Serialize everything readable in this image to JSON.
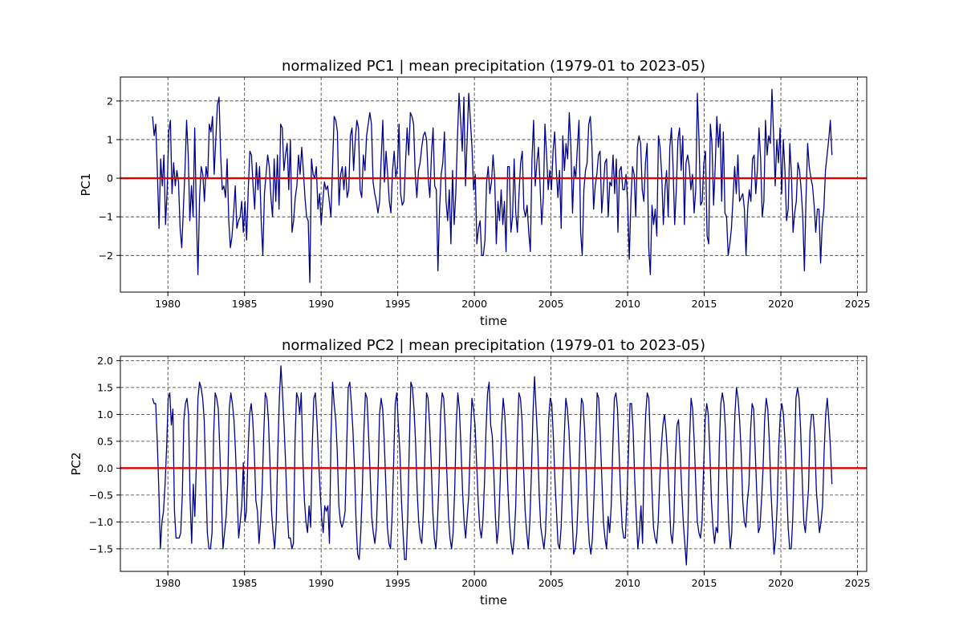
{
  "chart_data": [
    {
      "type": "line",
      "title": "normalized PC1 | mean precipitation (1979-01 to 2023-05)",
      "xlabel": "time",
      "ylabel": "PC1",
      "xlim": [
        1976.9,
        2025.6
      ],
      "ylim": [
        -2.95,
        2.62
      ],
      "xticks": [
        "1980",
        "1985",
        "1990",
        "1995",
        "2000",
        "2005",
        "2010",
        "2015",
        "2020",
        "2025"
      ],
      "yticks": [
        "−2",
        "−1",
        "0",
        "1",
        "2"
      ],
      "ytick_values": [
        -2,
        -1,
        0,
        1,
        2
      ],
      "grid": true,
      "reference_line": {
        "y": 0,
        "color": "#e00000"
      },
      "series": [
        {
          "color": "#00008b",
          "x_start": "1979-01",
          "x_end": "2023-05",
          "step": "monthly",
          "values": [
            1.6,
            1.1,
            1.4,
            0.1,
            -1.3,
            0.5,
            -0.2,
            0.6,
            -1.2,
            -0.3,
            1.2,
            1.5,
            -0.4,
            0.4,
            -0.2,
            0.2,
            -0.1,
            -1.3,
            -1.8,
            -0.8,
            0.2,
            1.5,
            0.6,
            -1.1,
            -0.2,
            -1.0,
            1.3,
            -0.9,
            -2.5,
            -0.5,
            0.3,
            0.1,
            -0.6,
            0.3,
            0.0,
            1.4,
            1.2,
            1.6,
            0.1,
            1.0,
            1.9,
            2.1,
            0.6,
            -0.3,
            -0.2,
            -0.5,
            0.5,
            -1.1,
            -1.8,
            -1.5,
            -0.9,
            -0.2,
            -1.3,
            -1.1,
            -1.0,
            -0.6,
            -1.4,
            -0.6,
            -1.6,
            -0.3,
            0.7,
            0.6,
            -0.2,
            -0.8,
            0.4,
            -0.3,
            0.3,
            -1.1,
            -2.0,
            -0.4,
            0.1,
            0.6,
            0.3,
            -0.5,
            -1.0,
            0.5,
            -0.6,
            0.6,
            -0.8,
            1.4,
            1.3,
            0.2,
            0.6,
            0.9,
            -0.3,
            1.0,
            -1.4,
            -1.1,
            -0.5,
            -0.2,
            0.6,
            0.1,
            0.8,
            0.2,
            -0.5,
            -1.0,
            -1.1,
            -2.7,
            0.5,
            0.1,
            0.0,
            0.3,
            -0.8,
            -0.4,
            -1.2,
            -0.6,
            -0.1,
            -0.3,
            -0.2,
            -0.6,
            -1.0,
            0.3,
            1.6,
            1.5,
            1.2,
            -0.7,
            0.1,
            0.3,
            -0.3,
            0.3,
            -0.5,
            -0.3,
            1.1,
            1.3,
            0.2,
            1.0,
            1.5,
            1.3,
            -0.3,
            -0.5,
            0.6,
            0.2,
            1.1,
            1.4,
            1.7,
            1.4,
            -0.1,
            -0.4,
            -0.6,
            -0.9,
            -0.6,
            0.5,
            1.5,
            -0.1,
            0.7,
            0.1,
            -0.6,
            -0.9,
            0.2,
            0.7,
            0.0,
            0.3,
            1.4,
            -0.4,
            -0.7,
            -0.6,
            0.4,
            1.3,
            0.6,
            1.7,
            1.6,
            1.4,
            0.1,
            -0.5,
            0.2,
            0.4,
            0.8,
            1.1,
            1.2,
            1.0,
            0.0,
            -0.5,
            0.6,
            1.3,
            -0.2,
            -0.3,
            -2.4,
            -0.8,
            0.1,
            0.4,
            1.2,
            -0.6,
            -1.1,
            -0.3,
            -1.7,
            0.2,
            -1.2,
            -0.4,
            1.0,
            2.2,
            1.5,
            0.7,
            2.1,
            -0.2,
            1.0,
            2.2,
            1.5,
            0.8,
            -0.3,
            0.1,
            -1.7,
            -1.3,
            -1.1,
            -2.0,
            -2.0,
            -1.6,
            -0.1,
            0.3,
            -0.4,
            -0.1,
            0.6,
            0.0,
            -1.7,
            -0.6,
            -1.1,
            -0.3,
            -1.2,
            -0.6,
            -1.9,
            0.3,
            0.3,
            -1.4,
            -1.0,
            0.5,
            -0.9,
            -1.4,
            -0.4,
            0.4,
            0.7,
            -0.8,
            -1.0,
            -0.7,
            -1.4,
            -1.9,
            0.5,
            1.5,
            -0.2,
            0.4,
            0.8,
            -0.2,
            -1.2,
            -0.5,
            1.4,
            0.6,
            -0.3,
            0.2,
            -0.3,
            0.7,
            1.2,
            0.2,
            -0.5,
            0.2,
            -1.3,
            1.1,
            0.2,
            0.9,
            0.5,
            1.7,
            0.8,
            -0.9,
            0.3,
            0.0,
            0.8,
            1.5,
            -1.4,
            -2.0,
            -0.3,
            0.2,
            0.4,
            1.4,
            1.6,
            0.8,
            -0.8,
            -0.2,
            0.1,
            0.6,
            0.7,
            -0.9,
            -0.3,
            0.4,
            0.5,
            -1.0,
            -0.1,
            -0.2,
            0.6,
            -0.4,
            0.5,
            -1.4,
            0.2,
            0.3,
            -0.3,
            -0.3,
            0.1,
            -0.6,
            -2.1,
            -0.6,
            0.3,
            0.1,
            -1.0,
            0.8,
            1.1,
            0.9,
            -0.3,
            -0.6,
            0.4,
            0.9,
            -1.8,
            -2.5,
            -0.7,
            -1.2,
            -0.8,
            -1.5,
            1.1,
            0.8,
            0.1,
            -1.2,
            -0.3,
            0.2,
            -1.0,
            0.8,
            1.3,
            0.3,
            -1.2,
            -0.3,
            1.0,
            1.3,
            0.2,
            1.1,
            -1.2,
            0.4,
            0.6,
            0.3,
            -0.3,
            0.1,
            -0.9,
            -0.3,
            2.2,
            1.0,
            -0.7,
            -0.6,
            0.4,
            0.7,
            -1.5,
            -1.7,
            1.4,
            0.9,
            -0.7,
            0.3,
            1.6,
            0.8,
            1.4,
            -0.6,
            1.2,
            -0.9,
            -1.0,
            -2.0,
            -1.7,
            -1.3,
            -0.5,
            0.3,
            -0.4,
            0.6,
            -0.6,
            -0.5,
            -0.4,
            -0.8,
            -2.0,
            -0.8,
            -0.3,
            -0.6,
            0.5,
            0.6,
            -0.4,
            0.2,
            1.3,
            0.5,
            -1.0,
            -0.6,
            1.5,
            0.6,
            1.1,
            0.9,
            2.3,
            1.1,
            -0.2,
            1.0,
            0.4,
            1.3,
            -0.4,
            1.0,
            0.2,
            -1.1,
            -0.8,
            0.9,
            0.1,
            -1.4,
            -0.9,
            -0.6,
            0.4,
            0.2,
            -0.3,
            -1.0,
            -2.4,
            -0.5,
            0.9,
            0.3,
            0.0,
            -0.2,
            -0.7,
            -1.4,
            -0.8,
            -0.8,
            -2.2,
            -1.2,
            -0.8,
            0.2,
            0.6,
            1.0,
            1.5,
            0.6
          ]
        }
      ]
    },
    {
      "type": "line",
      "title": "normalized PC2 | mean precipitation (1979-01 to 2023-05)",
      "xlabel": "time",
      "ylabel": "PC2",
      "xlim": [
        1976.9,
        2025.6
      ],
      "ylim": [
        -1.92,
        2.08
      ],
      "xticks": [
        "1980",
        "1985",
        "1990",
        "1995",
        "2000",
        "2005",
        "2010",
        "2015",
        "2020",
        "2025"
      ],
      "yticks": [
        "−1.5",
        "−1.0",
        "−0.5",
        "0.0",
        "0.5",
        "1.0",
        "1.5",
        "2.0"
      ],
      "ytick_values": [
        -1.5,
        -1.0,
        -0.5,
        0.0,
        0.5,
        1.0,
        1.5,
        2.0
      ],
      "grid": true,
      "reference_line": {
        "y": 0,
        "color": "#e00000"
      },
      "series": [
        {
          "color": "#00008b",
          "x_start": "1979-01",
          "x_end": "2023-05",
          "step": "monthly",
          "values": [
            1.3,
            1.2,
            1.2,
            0.5,
            -0.4,
            -1.5,
            -1.0,
            -0.8,
            -0.3,
            0.4,
            1.3,
            1.4,
            0.8,
            1.1,
            -0.8,
            -1.3,
            -1.3,
            -1.3,
            -1.2,
            -0.5,
            0.9,
            1.2,
            1.3,
            1.0,
            -0.6,
            -1.4,
            -0.3,
            -0.9,
            0.1,
            1.3,
            1.6,
            1.5,
            1.3,
            0.9,
            -0.2,
            -1.2,
            -1.5,
            -1.5,
            -1.2,
            0.6,
            1.4,
            1.3,
            1.1,
            0.3,
            -0.6,
            -1.5,
            -1.2,
            -0.9,
            -0.3,
            1.1,
            1.4,
            1.2,
            0.9,
            0.3,
            -0.5,
            -1.3,
            -1.0,
            -0.7,
            0.1,
            -1.0,
            -0.8,
            0.3,
            1.0,
            1.2,
            0.9,
            0.3,
            -0.6,
            -0.8,
            -1.4,
            -1.0,
            -0.4,
            0.6,
            1.4,
            1.3,
            0.9,
            0.1,
            -0.8,
            -1.2,
            -1.5,
            -1.0,
            0.3,
            1.3,
            1.9,
            1.4,
            0.8,
            0.1,
            -0.8,
            -1.3,
            -1.3,
            -1.5,
            -1.4,
            0.5,
            1.4,
            1.3,
            1.0,
            1.4,
            0.2,
            -0.6,
            -1.0,
            -1.2,
            -0.7,
            -1.1,
            0.4,
            1.3,
            1.4,
            0.9,
            0.2,
            -0.4,
            -0.9,
            -1.2,
            -0.7,
            -0.8,
            -0.7,
            -1.4,
            0.6,
            1.6,
            1.2,
            0.9,
            0.3,
            -0.7,
            -1.0,
            -1.1,
            -1.0,
            -0.8,
            0.4,
            1.5,
            1.6,
            1.2,
            0.7,
            0.0,
            -1.0,
            -1.6,
            -1.7,
            -1.2,
            -0.4,
            0.7,
            1.4,
            1.3,
            0.6,
            -0.1,
            -0.9,
            -1.2,
            -1.4,
            -1.1,
            -0.2,
            1.0,
            1.3,
            1.1,
            0.5,
            -0.3,
            -1.1,
            -1.4,
            -1.5,
            -0.9,
            0.1,
            1.2,
            1.4,
            0.8,
            0.3,
            -0.6,
            -1.2,
            -1.7,
            -1.7,
            -0.9,
            0.4,
            1.6,
            1.5,
            1.1,
            0.5,
            -0.4,
            -1.0,
            -1.3,
            -1.4,
            -0.8,
            0.3,
            1.4,
            1.3,
            0.8,
            0.1,
            -0.8,
            -1.3,
            -1.5,
            -1.0,
            -0.2,
            1.0,
            1.4,
            1.3,
            0.7,
            -0.1,
            -0.9,
            -1.3,
            -1.5,
            -1.2,
            -0.4,
            0.8,
            1.4,
            1.1,
            0.4,
            -0.4,
            -1.0,
            -1.3,
            -0.9,
            -0.5,
            0.5,
            1.3,
            1.1,
            0.8,
            0.1,
            -0.6,
            -1.1,
            -1.3,
            -1.0,
            -0.3,
            0.7,
            1.4,
            1.6,
            0.8,
            0.6,
            -0.1,
            -0.9,
            -1.4,
            -1.1,
            -0.3,
            0.8,
            1.3,
            1.0,
            0.4,
            -0.4,
            -1.0,
            -1.4,
            -1.6,
            -1.3,
            -0.7,
            0.6,
            1.4,
            1.3,
            0.9,
            0.0,
            -0.8,
            -1.2,
            -1.5,
            -1.0,
            -0.1,
            1.0,
            1.7,
            1.1,
            0.5,
            -0.5,
            -1.1,
            -1.3,
            -1.5,
            -1.2,
            -0.4,
            0.9,
            1.3,
            1.2,
            0.6,
            -0.2,
            -0.8,
            -1.4,
            -1.5,
            -1.1,
            -0.3,
            0.6,
            1.3,
            1.1,
            0.7,
            0.0,
            -0.9,
            -1.6,
            -1.5,
            -1.2,
            -0.5,
            0.6,
            1.3,
            1.2,
            0.7,
            -0.1,
            -0.9,
            -1.4,
            -1.6,
            -1.3,
            -0.5,
            0.4,
            1.4,
            1.3,
            0.6,
            -0.2,
            -1.0,
            -1.3,
            -1.5,
            -0.9,
            -1.2,
            -0.7,
            0.4,
            1.3,
            1.4,
            1.1,
            0.3,
            -0.5,
            -1.1,
            -1.3,
            -1.3,
            -0.6,
            0.3,
            1.2,
            1.2,
            0.7,
            -0.2,
            -0.9,
            -1.5,
            -1.2,
            -0.7,
            -1.4,
            0.2,
            1.0,
            1.4,
            1.3,
            0.5,
            -0.4,
            -1.1,
            -1.3,
            -1.4,
            -1.0,
            -0.2,
            0.4,
            0.8,
            1.0,
            0.7,
            0.2,
            -0.5,
            -1.2,
            -1.4,
            -1.0,
            0.2,
            0.8,
            0.9,
            0.3,
            -0.4,
            -1.0,
            -1.4,
            -1.8,
            -1.1,
            0.5,
            1.3,
            1.1,
            0.5,
            -0.3,
            -1.0,
            -1.2,
            -1.3,
            -1.0,
            0.0,
            0.9,
            1.2,
            1.0,
            0.3,
            -0.6,
            -1.1,
            -1.4,
            -1.1,
            -1.2,
            0.4,
            1.2,
            1.4,
            1.2,
            0.7,
            -0.3,
            -1.0,
            -1.5,
            -1.2,
            0.1,
            1.0,
            1.5,
            1.3,
            0.9,
            0.3,
            -0.6,
            -1.0,
            -1.1,
            -0.6,
            -0.3,
            0.7,
            1.2,
            1.1,
            0.3,
            -0.5,
            -1.2,
            -1.1,
            -0.6,
            0.0,
            0.9,
            1.3,
            1.1,
            0.5,
            -0.4,
            -1.0,
            -1.6,
            -1.3,
            -0.7,
            0.4,
            1.0,
            1.2,
            1.0,
            0.5,
            -0.3,
            -1.1,
            -1.5,
            -1.5,
            -0.9,
            0.2,
            1.3,
            1.5,
            1.3,
            0.7,
            -0.2,
            -1.0,
            -1.2,
            -0.8,
            -0.4,
            0.7,
            1.0,
            1.0,
            0.6,
            -0.4,
            -0.8,
            -1.2,
            -1.0,
            -0.7,
            0.3,
            1.0,
            1.3,
            0.9,
            0.4,
            -0.3
          ]
        }
      ]
    }
  ]
}
